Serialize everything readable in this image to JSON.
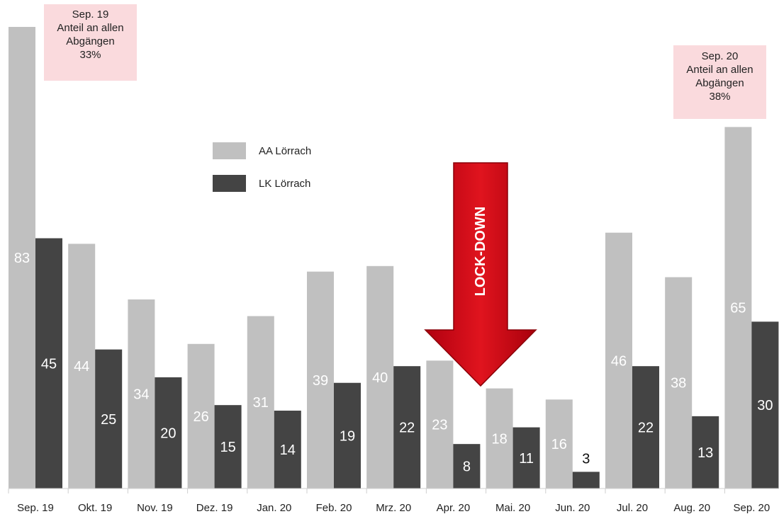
{
  "chart_data": {
    "type": "bar",
    "categories": [
      "Sep. 19",
      "Okt. 19",
      "Nov. 19",
      "Dez. 19",
      "Jan. 20",
      "Feb. 20",
      "Mrz. 20",
      "Apr. 20",
      "Mai. 20",
      "Jun. 20",
      "Jul. 20",
      "Aug. 20",
      "Sep. 20"
    ],
    "series": [
      {
        "name": "AA Lörrach",
        "color": "#c0c0c0",
        "label_color": "#ffffff",
        "values": [
          83,
          44,
          34,
          26,
          31,
          39,
          40,
          23,
          18,
          16,
          46,
          38,
          65
        ]
      },
      {
        "name": "LK Lörrach",
        "color": "#444444",
        "label_color": "#ffffff",
        "values": [
          45,
          25,
          20,
          15,
          14,
          19,
          22,
          8,
          11,
          3,
          22,
          13,
          30
        ]
      }
    ],
    "ylim": [
      0,
      83
    ],
    "grid": false,
    "legend_position": "top-center",
    "annotations": {
      "left_note": [
        "Sep. 19",
        "Anteil an allen",
        "Abgängen",
        "33%"
      ],
      "right_note": [
        "Sep. 20",
        "Anteil an allen",
        "Abgängen",
        "38%"
      ],
      "arrow_label": "LOCK-DOWN",
      "arrow_color": "#d0101a"
    }
  }
}
